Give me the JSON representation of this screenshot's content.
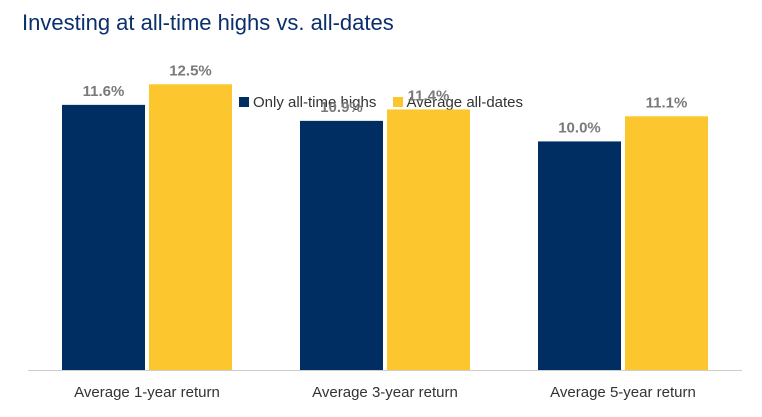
{
  "title": "Investing at all-time highs vs. all-dates",
  "colors": {
    "series1": "#002d62",
    "series2": "#fcc72e",
    "axis": "#cccccc",
    "label": "#7a7a7a"
  },
  "chart_data": {
    "type": "bar",
    "categories": [
      "Average 1-year return",
      "Average 3-year return",
      "Average 5-year return"
    ],
    "series": [
      {
        "name": "Only all-time highs",
        "values": [
          11.6,
          10.9,
          10.0
        ],
        "labels": [
          "11.6%",
          "10.9%",
          "10.0%"
        ]
      },
      {
        "name": "Average all-dates",
        "values": [
          12.5,
          11.4,
          11.1
        ],
        "labels": [
          "12.5%",
          "11.4%",
          "11.1%"
        ]
      }
    ],
    "ylim": [
      0,
      14
    ],
    "grid": false,
    "legend": "top-center"
  }
}
